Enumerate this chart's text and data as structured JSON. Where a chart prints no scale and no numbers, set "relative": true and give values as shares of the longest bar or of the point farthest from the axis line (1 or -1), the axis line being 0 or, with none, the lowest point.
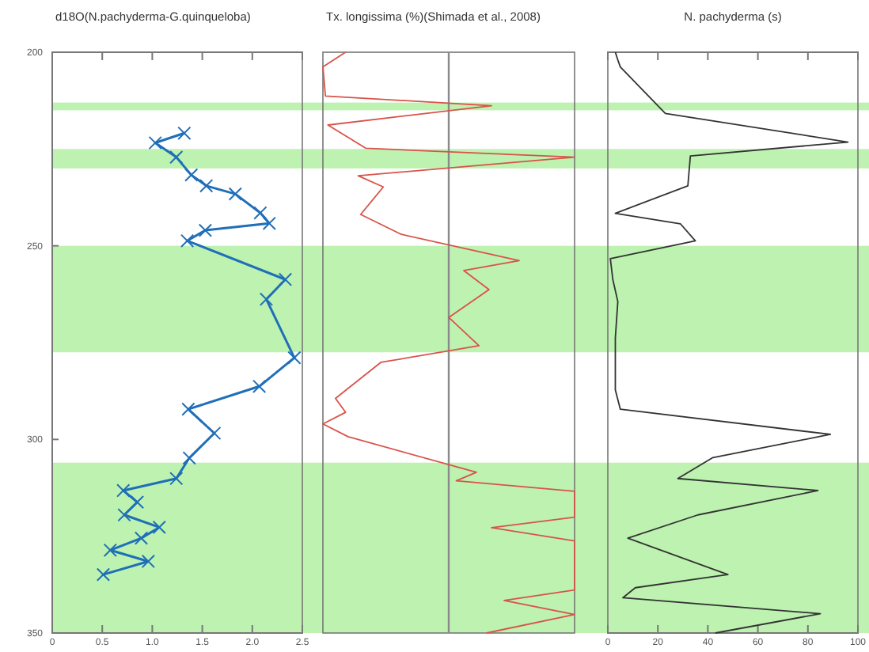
{
  "chart_data": [
    {
      "type": "line",
      "orientation": "horizontal",
      "title": "d18O(N.pachyderma-G.quinqueloba)",
      "marker": "cross",
      "x": [
        220.9,
        223.4,
        227.1,
        231.7,
        234.5,
        236.6,
        241.5,
        244.2,
        246.0,
        248.7,
        258.7,
        263.8,
        278.9,
        286.3,
        292.2,
        298.4,
        304.8,
        310.1,
        313.2,
        316.2,
        319.5,
        322.7,
        325.5,
        328.6,
        331.5,
        334.9
      ],
      "series": [
        {
          "color": "#1f6fb8",
          "values": [
            1.32,
            1.03,
            1.24,
            1.39,
            1.54,
            1.83,
            2.08,
            2.17,
            1.53,
            1.35,
            2.33,
            2.14,
            2.42,
            2.07,
            1.36,
            1.62,
            1.37,
            1.24,
            0.71,
            0.85,
            0.72,
            1.07,
            0.89,
            0.58,
            0.96,
            0.51
          ]
        }
      ],
      "xlim": [
        0,
        2.5
      ],
      "xticks": [
        0,
        {
          "value": 0.5,
          "label": "0.5"
        },
        {
          "value": 1,
          "label": "1.0"
        },
        {
          "value": 1.5,
          "label": "1.5"
        },
        {
          "value": 2,
          "label": "2.0"
        },
        {
          "value": 2.5,
          "label": "2.5"
        }
      ],
      "ylim": [
        350,
        200
      ],
      "yticks": [
        200,
        250,
        300,
        350
      ],
      "bands": [
        {
          "axis": "y",
          "from": 213,
          "to": 215,
          "color": "#bdf2b0"
        },
        {
          "axis": "y",
          "from": 225,
          "to": 230,
          "color": "#bdf2b0"
        },
        {
          "axis": "y",
          "from": 250,
          "to": 277.5,
          "color": "#bdf2b0"
        },
        {
          "axis": "y",
          "from": 306,
          "to": 350,
          "color": "#bdf2b0"
        }
      ]
    },
    {
      "type": "line",
      "orientation": "horizontal",
      "title": "Tx. longissima (%)(Shimada et al., 2008)",
      "relative": true,
      "tick_labels": false,
      "x": [
        200,
        203.8,
        211.3,
        213.8,
        218.8,
        224.8,
        227.1,
        231.9,
        234.8,
        241.9,
        247,
        253.8,
        256.4,
        261.3,
        268.5,
        275.8,
        280.1,
        289.4,
        293,
        296,
        299.3,
        308.5,
        310.7,
        313.4,
        320.1,
        322.8,
        326.2,
        338.9,
        341.6,
        345.2,
        350
      ],
      "series": [
        {
          "color": "#d9534a",
          "values": [
            0.09,
            0,
            0.01,
            0.67,
            0.02,
            0.17,
            1,
            0.14,
            0.24,
            0.15,
            0.31,
            0.78,
            0.56,
            0.66,
            0.5,
            0.62,
            0.23,
            0.05,
            0.09,
            0,
            0.1,
            0.61,
            0.53,
            1,
            1,
            0.67,
            1,
            1,
            0.72,
            1,
            0.65
          ]
        }
      ],
      "ylim": [
        350,
        200
      ],
      "ref_lines": [
        {
          "axis": "x",
          "value": 0.5,
          "color": "#8a8a8a"
        }
      ],
      "bands": [
        {
          "axis": "y",
          "from": 213,
          "to": 215,
          "color": "#bdf2b0"
        },
        {
          "axis": "y",
          "from": 225,
          "to": 230,
          "color": "#bdf2b0"
        },
        {
          "axis": "y",
          "from": 250,
          "to": 277.5,
          "color": "#bdf2b0"
        },
        {
          "axis": "y",
          "from": 306,
          "to": 350,
          "color": "#bdf2b0"
        }
      ]
    },
    {
      "type": "line",
      "orientation": "horizontal",
      "title": "N. pachyderma (s)",
      "tick_labels": "x",
      "x": [
        200,
        202,
        203.8,
        215.8,
        223.2,
        226.8,
        234.5,
        241.6,
        244.3,
        248.7,
        253.3,
        258.7,
        264.4,
        273.8,
        287.2,
        292.2,
        298.7,
        304.7,
        310.1,
        313.2,
        319.5,
        325.5,
        334.9,
        338.3,
        340.9,
        345,
        350
      ],
      "series": [
        {
          "color": "#333333",
          "values": [
            3,
            4,
            5,
            23,
            96,
            33,
            32,
            3,
            29,
            35,
            1,
            2,
            4,
            3,
            3,
            5,
            89,
            42,
            28,
            84,
            36,
            8,
            48,
            11,
            6,
            85,
            43
          ]
        }
      ],
      "xlim": [
        0,
        100
      ],
      "xticks": [
        0,
        20,
        40,
        60,
        80,
        100
      ],
      "ylim": [
        350,
        200
      ],
      "bands": [
        {
          "axis": "y",
          "from": 213,
          "to": 215,
          "color": "#bdf2b0"
        },
        {
          "axis": "y",
          "from": 225,
          "to": 230,
          "color": "#bdf2b0"
        },
        {
          "axis": "y",
          "from": 250,
          "to": 277.5,
          "color": "#bdf2b0"
        },
        {
          "axis": "y",
          "from": 306,
          "to": 350,
          "color": "#bdf2b0"
        }
      ]
    }
  ]
}
